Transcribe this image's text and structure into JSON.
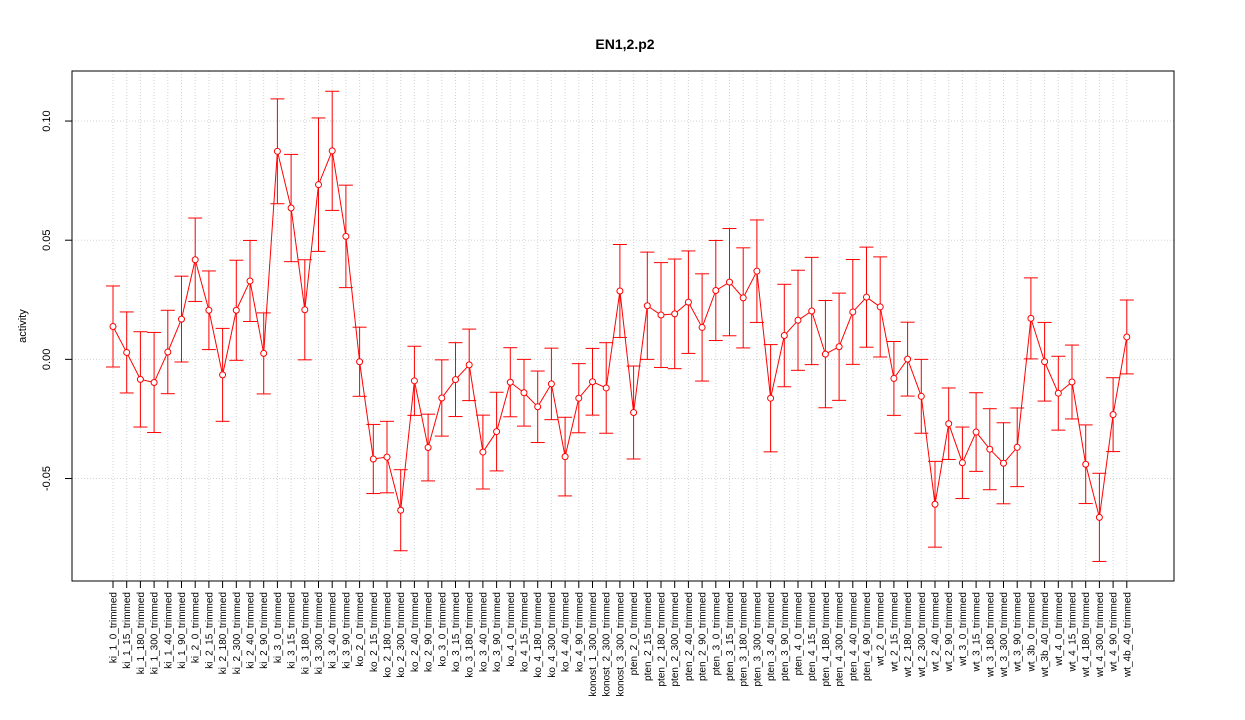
{
  "chart_data": {
    "type": "line",
    "title": "EN1,2.p2",
    "xlabel": "",
    "ylabel": "activity",
    "ylim": [
      -0.093,
      0.121
    ],
    "yticks": [
      -0.05,
      0.0,
      0.05,
      0.1
    ],
    "ytick_labels": [
      "-0.05",
      "0.00",
      "0.05",
      "0.10"
    ],
    "grid": true,
    "error_bars": true,
    "color": "#ff0000",
    "categories": [
      "ki_1_0_trimmed",
      "ki_1_15_trimmed",
      "ki_1_180_trimmed",
      "ki_1_300_trimmed",
      "ki_1_40_trimmed",
      "ki_1_90_trimmed",
      "ki_2_0_trimmed",
      "ki_2_15_trimmed",
      "ki_2_180_trimmed",
      "ki_2_300_trimmed",
      "ki_2_40_trimmed",
      "ki_2_90_trimmed",
      "ki_3_0_trimmed",
      "ki_3_15_trimmed",
      "ki_3_180_trimmed",
      "ki_3_300_trimmed",
      "ki_3_40_trimmed",
      "ki_3_90_trimmed",
      "ko_2_0_trimmed",
      "ko_2_15_trimmed",
      "ko_2_180_trimmed",
      "ko_2_300_trimmed",
      "ko_2_40_trimmed",
      "ko_2_90_trimmed",
      "ko_3_0_trimmed",
      "ko_3_15_trimmed",
      "ko_3_180_trimmed",
      "ko_3_40_trimmed",
      "ko_3_90_trimmed",
      "ko_4_0_trimmed",
      "ko_4_15_trimmed",
      "ko_4_180_trimmed",
      "ko_4_300_trimmed",
      "ko_4_40_trimmed",
      "ko_4_90_trimmed",
      "konost_1_300_trimmed",
      "konost_2_300_trimmed",
      "konost_3_300_trimmed",
      "pten_2_0_trimmed",
      "pten_2_15_trimmed",
      "pten_2_180_trimmed",
      "pten_2_300_trimmed",
      "pten_2_40_trimmed",
      "pten_2_90_trimmed",
      "pten_3_0_trimmed",
      "pten_3_15_trimmed",
      "pten_3_180_trimmed",
      "pten_3_300_trimmed",
      "pten_3_40_trimmed",
      "pten_3_90_trimmed",
      "pten_4_0_trimmed",
      "pten_4_15_trimmed",
      "pten_4_180_trimmed",
      "pten_4_300_trimmed",
      "pten_4_40_trimmed",
      "pten_4_90_trimmed",
      "wt_2_0_trimmed",
      "wt_2_15_trimmed",
      "wt_2_180_trimmed",
      "wt_2_300_trimmed",
      "wt_2_40_trimmed",
      "wt_2_90_trimmed",
      "wt_3_0_trimmed",
      "wt_3_15_trimmed",
      "wt_3_180_trimmed",
      "wt_3_300_trimmed",
      "wt_3_90_trimmed",
      "wt_3b_0_trimmed",
      "wt_3b_40_trimmed",
      "wt_4_0_trimmed",
      "wt_4_15_trimmed",
      "wt_4_180_trimmed",
      "wt_4_300_trimmed",
      "wt_4_90_trimmed",
      "wt_4b_40_trimmed"
    ],
    "series": [
      {
        "values": [
          0.0138,
          0.0029,
          -0.0084,
          -0.0097,
          0.0031,
          0.0169,
          0.0418,
          0.0206,
          -0.0065,
          0.0206,
          0.0329,
          0.0025,
          0.0873,
          0.0635,
          0.0208,
          0.0733,
          0.0875,
          0.0516,
          -0.001,
          -0.0418,
          -0.041,
          -0.0633,
          -0.009,
          -0.037,
          -0.0162,
          -0.0085,
          -0.0023,
          -0.0389,
          -0.0303,
          -0.0096,
          -0.014,
          -0.0199,
          -0.0103,
          -0.0408,
          -0.0163,
          -0.0094,
          -0.012,
          0.0287,
          -0.0223,
          0.0225,
          0.0186,
          0.0191,
          0.024,
          0.0134,
          0.0289,
          0.0324,
          0.0258,
          0.037,
          -0.0163,
          0.01,
          0.0164,
          0.0203,
          0.0022,
          0.0053,
          0.0199,
          0.0261,
          0.022,
          -0.008,
          0.0001,
          -0.0155,
          -0.0608,
          -0.027,
          -0.0434,
          -0.0305,
          -0.0377,
          -0.0436,
          -0.0369,
          0.0172,
          -0.001,
          -0.0142,
          -0.0095,
          -0.044,
          -0.0663,
          -0.0232,
          0.0094
        ],
        "errors": [
          0.017,
          0.017,
          0.02,
          0.021,
          0.0175,
          0.018,
          0.0175,
          0.0165,
          0.0195,
          0.021,
          0.017,
          0.017,
          0.022,
          0.0225,
          0.021,
          0.028,
          0.025,
          0.0215,
          0.0145,
          0.0145,
          0.015,
          0.017,
          0.0145,
          0.014,
          0.016,
          0.0155,
          0.015,
          0.0155,
          0.0165,
          0.0145,
          0.014,
          0.015,
          0.015,
          0.0165,
          0.0145,
          0.014,
          0.019,
          0.0195,
          0.0195,
          0.0225,
          0.022,
          0.023,
          0.0215,
          0.0225,
          0.021,
          0.0225,
          0.021,
          0.0215,
          0.0225,
          0.0215,
          0.021,
          0.0225,
          0.0225,
          0.0225,
          0.022,
          0.021,
          0.021,
          0.0155,
          0.0155,
          0.0155,
          0.018,
          0.015,
          0.015,
          0.0165,
          0.017,
          0.017,
          0.0165,
          0.017,
          0.0165,
          0.0155,
          0.0155,
          0.0165,
          0.0185,
          0.0155,
          0.0155
        ]
      }
    ]
  }
}
